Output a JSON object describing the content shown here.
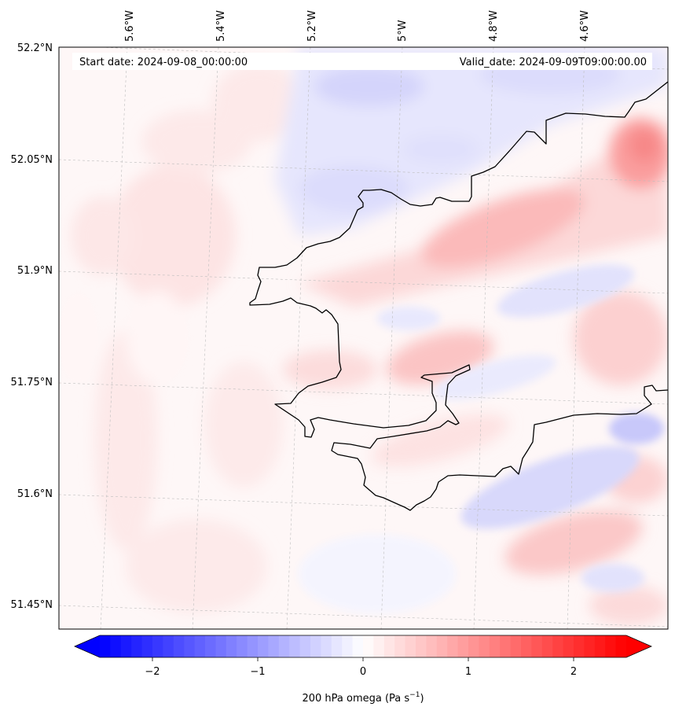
{
  "map": {
    "start_date_label": "Start date: 2024-09-08_00:00:00",
    "valid_date_label": "Valid_date: 2024-09-09T09:00:00.00",
    "longitude_labels": [
      "5.6°W",
      "5.4°W",
      "5.2°W",
      "5°W",
      "4.8°W",
      "4.6°W"
    ],
    "latitude_labels": [
      "52.2°N",
      "52.05°N",
      "51.9°N",
      "51.75°N",
      "51.6°N",
      "51.45°N"
    ],
    "gridlines": true
  },
  "colorbar": {
    "label": "200 hPa omega (Pa s",
    "label_sup": "−1",
    "label_close": ")",
    "tick_labels": [
      "−2",
      "−1",
      "0",
      "1",
      "2"
    ],
    "tick_values": [
      -2,
      -1,
      0,
      1,
      2
    ],
    "range": [
      -2.5,
      2.5
    ],
    "extend": "both",
    "colormap": "bwr",
    "colors": {
      "negative": "#0000ff",
      "zero": "#ffffff",
      "positive": "#ff0000"
    }
  }
}
